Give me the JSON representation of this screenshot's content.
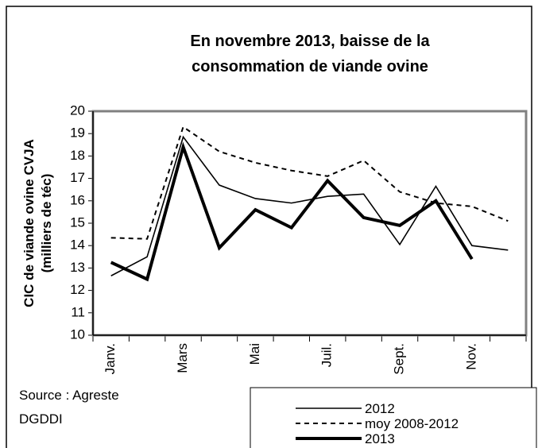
{
  "chart_data": {
    "type": "line",
    "title": [
      "En novembre 2013, baisse de  la",
      "consommation de viande ovine"
    ],
    "y_label": [
      "CIC de viande ovine CVJA",
      "(milliers de téc)"
    ],
    "source": [
      "Source : Agreste",
      "DGDDI"
    ],
    "categories": [
      "Janv.",
      null,
      "Mars",
      null,
      "Mai",
      null,
      "Juil.",
      null,
      "Sept.",
      null,
      "Nov.",
      null
    ],
    "series": [
      {
        "name": "2012",
        "color": "#000000",
        "values": [
          12.65,
          13.5,
          18.85,
          16.7,
          16.1,
          15.9,
          16.2,
          16.3,
          14.05,
          16.65,
          14.0,
          13.8
        ]
      },
      {
        "name": "moy 2008-2012",
        "color": "#000000",
        "values": [
          14.35,
          14.3,
          19.3,
          18.2,
          17.7,
          17.35,
          17.1,
          17.8,
          16.4,
          15.9,
          15.75,
          15.1
        ]
      },
      {
        "name": "2013",
        "color": "#000000",
        "values": [
          13.25,
          12.5,
          18.4,
          13.9,
          15.6,
          14.8,
          16.9,
          15.25,
          14.9,
          16.0,
          13.4,
          null
        ]
      }
    ],
    "ylim": [
      10,
      20
    ],
    "yticks": [
      10,
      11,
      12,
      13,
      14,
      15,
      16,
      17,
      18,
      19,
      20
    ]
  }
}
